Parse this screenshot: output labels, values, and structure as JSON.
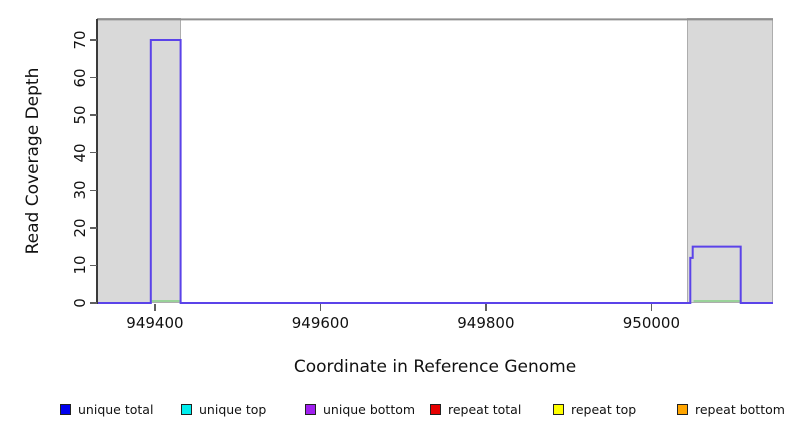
{
  "figure": {
    "x_axis": {
      "title": "Coordinate in Reference Genome"
    },
    "y_axis": {
      "title": "Read Coverage Depth"
    }
  },
  "chart_data": {
    "type": "line",
    "title": "",
    "xlabel": "Coordinate in Reference Genome",
    "ylabel": "Read Coverage Depth",
    "xlim": [
      949330,
      950147
    ],
    "ylim": [
      0,
      75.6
    ],
    "x_ticks": [
      949400,
      949600,
      949800,
      950000
    ],
    "x_tick_labels": [
      "949400",
      "949600",
      "949800",
      "950000"
    ],
    "y_ticks": [
      0,
      10,
      20,
      30,
      40,
      50,
      60,
      70
    ],
    "grid": false,
    "legend_position": "bottom",
    "series": [
      {
        "name": "coverage-step-line (unique bottom)",
        "color": "#5B43E9",
        "type": "step",
        "points": [
          [
            949330,
            0
          ],
          [
            949395,
            0
          ],
          [
            949395,
            70
          ],
          [
            949431,
            70
          ],
          [
            949431,
            0
          ],
          [
            950047,
            0
          ],
          [
            950047,
            12
          ],
          [
            950050,
            12
          ],
          [
            950050,
            15
          ],
          [
            950108,
            15
          ],
          [
            950108,
            0
          ],
          [
            950147,
            0
          ]
        ]
      },
      {
        "name": "baseline-green-segments",
        "color": "#90D090",
        "type": "segments",
        "y": 0,
        "segments": [
          {
            "x1": 949396,
            "x2": 949430
          },
          {
            "x1": 950051,
            "x2": 950107
          }
        ]
      }
    ],
    "shaded_regions": [
      {
        "x1": 949330,
        "x2": 949431
      },
      {
        "x1": 950043,
        "x2": 950147
      }
    ],
    "top_boundary_value": 75.5,
    "top_boundary_color": "#8F8F8F"
  },
  "legend": {
    "items": [
      {
        "label": "unique total",
        "color": "#0000EE"
      },
      {
        "label": "unique top",
        "color": "#00EEEE"
      },
      {
        "label": "unique bottom",
        "color": "#A020F0"
      },
      {
        "label": "repeat total",
        "color": "#E60000"
      },
      {
        "label": "repeat top",
        "color": "#FFFF00"
      },
      {
        "label": "repeat bottom",
        "color": "#FFA500"
      }
    ]
  },
  "colors": {
    "shade_fill": "#D9D9D9",
    "shade_border": "#ADADAD",
    "axis": "#3A3A3A",
    "tick": "#5E5E5E",
    "text": "#111111",
    "background": "#FFFFFF"
  }
}
